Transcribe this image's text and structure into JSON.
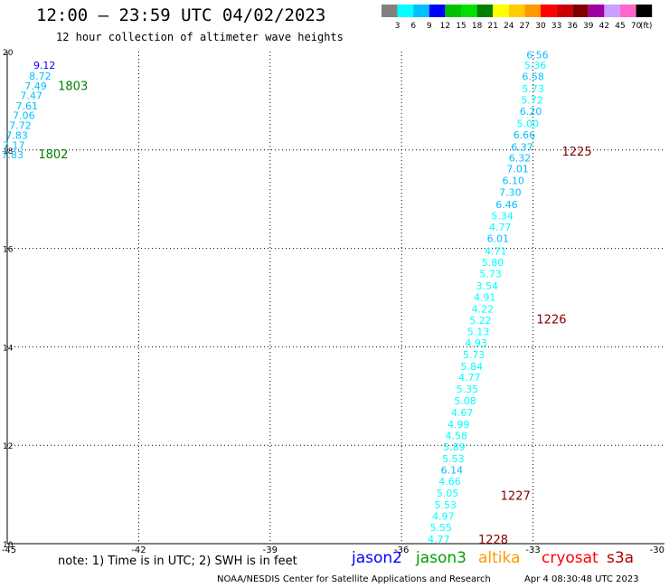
{
  "header": {
    "title": "12:00 – 23:59 UTC 04/02/2023",
    "subtitle": "12 hour collection of altimeter wave heights"
  },
  "colorbar": {
    "unit": "(ft)",
    "ticks": [
      "3",
      "6",
      "9",
      "12",
      "15",
      "18",
      "21",
      "24",
      "27",
      "30",
      "33",
      "36",
      "39",
      "42",
      "45",
      "70"
    ],
    "colors": [
      "#808080",
      "#00ffff",
      "#00bfff",
      "#0000ff",
      "#00c000",
      "#00e000",
      "#008000",
      "#ffff00",
      "#ffcc00",
      "#ff9900",
      "#ff0000",
      "#cc0000",
      "#800000",
      "#a000a0",
      "#c8a0ff",
      "#ff66cc",
      "#000000"
    ]
  },
  "footer": {
    "note": "note: 1) Time is in UTC; 2) SWH is in feet",
    "satellites": [
      {
        "name": "jason2",
        "color": "#0000ff"
      },
      {
        "name": "jason3",
        "color": "#00a000"
      },
      {
        "name": "altika",
        "color": "#ff9900"
      },
      {
        "name": "cryosat",
        "color": "#ff0000"
      },
      {
        "name": "s3a",
        "color": "#b00000"
      }
    ],
    "credit": "NOAA/NESDIS Center for Satellite Applications and Research",
    "timestamp": "Apr  4 08:30:48 UTC 2023"
  },
  "chart_data": {
    "type": "scatter",
    "title": "12:00 – 23:59 UTC 04/02/2023",
    "subtitle": "12 hour collection of altimeter wave heights",
    "xlim": [
      -45,
      -30
    ],
    "ylim": [
      10,
      20
    ],
    "x_ticks": [
      "-45",
      "-42",
      "-39",
      "-36",
      "-33",
      "-30"
    ],
    "y_ticks": [
      "10",
      "12",
      "14",
      "16",
      "18",
      "20"
    ],
    "x_tick_values": [
      -45,
      -42,
      -39,
      -36,
      -33,
      -30
    ],
    "y_tick_values": [
      10,
      12,
      14,
      16,
      18,
      20
    ],
    "grid": true,
    "points": [
      {
        "x": -44.15,
        "y": 19.72,
        "v": "9.12",
        "c": "#0000ff"
      },
      {
        "x": -44.25,
        "y": 19.5,
        "v": "8.72",
        "c": "#00bfff"
      },
      {
        "x": -44.35,
        "y": 19.3,
        "v": "7.49",
        "c": "#00bfff"
      },
      {
        "x": -44.45,
        "y": 19.11,
        "v": "7.47",
        "c": "#00bfff"
      },
      {
        "x": -44.55,
        "y": 18.9,
        "v": "7.61",
        "c": "#00bfff"
      },
      {
        "x": -44.62,
        "y": 18.7,
        "v": "7.06",
        "c": "#00bfff"
      },
      {
        "x": -44.7,
        "y": 18.5,
        "v": "7.72",
        "c": "#00bfff"
      },
      {
        "x": -44.78,
        "y": 18.3,
        "v": "7.83",
        "c": "#00bfff"
      },
      {
        "x": -44.85,
        "y": 18.1,
        "v": "7.17",
        "c": "#00bfff"
      },
      {
        "x": -44.88,
        "y": 17.9,
        "v": "7.83",
        "c": "#00bfff"
      },
      {
        "x": -32.9,
        "y": 19.94,
        "v": "6.56",
        "c": "#00bfff"
      },
      {
        "x": -32.95,
        "y": 19.72,
        "v": "5.36",
        "c": "#00ffff"
      },
      {
        "x": -33.0,
        "y": 19.49,
        "v": "6.58",
        "c": "#00bfff"
      },
      {
        "x": -33.0,
        "y": 19.25,
        "v": "5.73",
        "c": "#00ffff"
      },
      {
        "x": -33.02,
        "y": 19.02,
        "v": "5.72",
        "c": "#00ffff"
      },
      {
        "x": -33.05,
        "y": 18.79,
        "v": "6.20",
        "c": "#00bfff"
      },
      {
        "x": -33.12,
        "y": 18.54,
        "v": "5.00",
        "c": "#00ffff"
      },
      {
        "x": -33.2,
        "y": 18.31,
        "v": "6.66",
        "c": "#00bfff"
      },
      {
        "x": -33.25,
        "y": 18.06,
        "v": "6.37",
        "c": "#00bfff"
      },
      {
        "x": -33.3,
        "y": 17.84,
        "v": "6.32",
        "c": "#00bfff"
      },
      {
        "x": -33.35,
        "y": 17.62,
        "v": "7.01",
        "c": "#00bfff"
      },
      {
        "x": -33.45,
        "y": 17.38,
        "v": "6.10",
        "c": "#00bfff"
      },
      {
        "x": -33.52,
        "y": 17.14,
        "v": "7.30",
        "c": "#00bfff"
      },
      {
        "x": -33.6,
        "y": 16.89,
        "v": "6.46",
        "c": "#00bfff"
      },
      {
        "x": -33.7,
        "y": 16.66,
        "v": "5.34",
        "c": "#00ffff"
      },
      {
        "x": -33.75,
        "y": 16.43,
        "v": "4.77",
        "c": "#00ffff"
      },
      {
        "x": -33.8,
        "y": 16.2,
        "v": "6.01",
        "c": "#00bfff"
      },
      {
        "x": -33.85,
        "y": 15.95,
        "v": "4.71",
        "c": "#00ffff"
      },
      {
        "x": -33.92,
        "y": 15.72,
        "v": "5.80",
        "c": "#00ffff"
      },
      {
        "x": -33.97,
        "y": 15.49,
        "v": "5.73",
        "c": "#00ffff"
      },
      {
        "x": -34.05,
        "y": 15.24,
        "v": "3.54",
        "c": "#00ffff"
      },
      {
        "x": -34.1,
        "y": 15.01,
        "v": "4.91",
        "c": "#00ffff"
      },
      {
        "x": -34.15,
        "y": 14.77,
        "v": "4.22",
        "c": "#00ffff"
      },
      {
        "x": -34.2,
        "y": 14.54,
        "v": "5.22",
        "c": "#00ffff"
      },
      {
        "x": -34.25,
        "y": 14.31,
        "v": "5.13",
        "c": "#00ffff"
      },
      {
        "x": -34.3,
        "y": 14.08,
        "v": "4.93",
        "c": "#00ffff"
      },
      {
        "x": -34.35,
        "y": 13.84,
        "v": "5.73",
        "c": "#00ffff"
      },
      {
        "x": -34.4,
        "y": 13.6,
        "v": "5.84",
        "c": "#00ffff"
      },
      {
        "x": -34.45,
        "y": 13.38,
        "v": "4.77",
        "c": "#00ffff"
      },
      {
        "x": -34.5,
        "y": 13.14,
        "v": "5.35",
        "c": "#00ffff"
      },
      {
        "x": -34.55,
        "y": 12.9,
        "v": "5.08",
        "c": "#00ffff"
      },
      {
        "x": -34.62,
        "y": 12.67,
        "v": "4.67",
        "c": "#00ffff"
      },
      {
        "x": -34.7,
        "y": 12.43,
        "v": "4.99",
        "c": "#00ffff"
      },
      {
        "x": -34.75,
        "y": 12.2,
        "v": "4.58",
        "c": "#00ffff"
      },
      {
        "x": -34.8,
        "y": 11.97,
        "v": "5.89",
        "c": "#00ffff"
      },
      {
        "x": -34.82,
        "y": 11.73,
        "v": "5.53",
        "c": "#00ffff"
      },
      {
        "x": -34.85,
        "y": 11.5,
        "v": "6.14",
        "c": "#00bfff"
      },
      {
        "x": -34.9,
        "y": 11.27,
        "v": "4.66",
        "c": "#00ffff"
      },
      {
        "x": -34.95,
        "y": 11.03,
        "v": "5.05",
        "c": "#00ffff"
      },
      {
        "x": -35.0,
        "y": 10.79,
        "v": "5.53",
        "c": "#00ffff"
      },
      {
        "x": -35.05,
        "y": 10.56,
        "v": "4.97",
        "c": "#00ffff"
      },
      {
        "x": -35.1,
        "y": 10.33,
        "v": "5.55",
        "c": "#00ffff"
      },
      {
        "x": -35.15,
        "y": 10.09,
        "v": "4.77",
        "c": "#00ffff"
      }
    ],
    "annotations": [
      {
        "x": -43.5,
        "y": 19.31,
        "text": "1803",
        "c": "#008000"
      },
      {
        "x": -43.95,
        "y": 17.92,
        "text": "1802",
        "c": "#008000"
      },
      {
        "x": -32.0,
        "y": 17.98,
        "text": "1225",
        "c": "#800000"
      },
      {
        "x": -32.58,
        "y": 14.57,
        "text": "1226",
        "c": "#800000"
      },
      {
        "x": -33.4,
        "y": 10.98,
        "text": "1227",
        "c": "#800000"
      },
      {
        "x": -33.91,
        "y": 10.09,
        "text": "1228",
        "c": "#800000"
      }
    ]
  }
}
